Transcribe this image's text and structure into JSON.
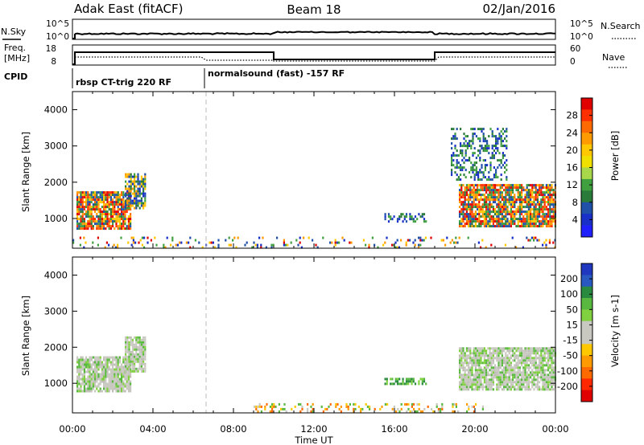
{
  "header": {
    "radar_title": "Adak East (fitACF)",
    "beam_title": "Beam 18",
    "date_title": "02/Jan/2016"
  },
  "top_panels": {
    "nsky_label": "N.Sky",
    "nsky_ticks": [
      "10^5",
      "10^0"
    ],
    "nsearch_label": "N.Search",
    "nsearch_ticks": [
      "10^5",
      "10^0"
    ],
    "freq_label": "Freq.",
    "freq_unit": "[MHz]",
    "freq_ticks": [
      "18",
      "8"
    ],
    "nave_label": "Nave",
    "nave_ticks": [
      "60",
      "0"
    ],
    "cpid_label": "CPID",
    "cpid_segments": [
      "rbsp CT-trig 220 RF",
      "normalsound (fast) -157 RF"
    ]
  },
  "chart_data": [
    {
      "type": "heatmap",
      "name": "power",
      "ylabel": "Slant Range [km]",
      "xlabel": "",
      "y_ticks": [
        "4000",
        "3000",
        "2000",
        "1000"
      ],
      "y_tick_values": [
        4000,
        3000,
        2000,
        1000
      ],
      "ylim": [
        180,
        4500
      ],
      "x_ticks": [
        "00:00",
        "04:00",
        "08:00",
        "12:00",
        "16:00",
        "20:00",
        "00:00"
      ],
      "xlim": [
        0,
        24
      ],
      "colorbar": {
        "label": "Power [dB]",
        "ticks": [
          "28",
          "24",
          "20",
          "16",
          "12",
          "8",
          "4"
        ],
        "colors": [
          "#e00000",
          "#ff3000",
          "#ff6a00",
          "#ff9a00",
          "#ffc800",
          "#f0e000",
          "#a8d84a",
          "#40a040",
          "#2a7a3a",
          "#2050a8",
          "#1830c8",
          "#2020ff"
        ]
      },
      "regions": [
        {
          "t0": 0.2,
          "t1": 2.9,
          "r0": 750,
          "r1": 1750,
          "level": "high"
        },
        {
          "t0": 2.6,
          "t1": 3.6,
          "r0": 1300,
          "r1": 2250,
          "level": "mid"
        },
        {
          "t0": 19.2,
          "t1": 24.0,
          "r0": 780,
          "r1": 1950,
          "level": "high"
        },
        {
          "t0": 18.8,
          "t1": 21.6,
          "r0": 2100,
          "r1": 3500,
          "level": "low"
        },
        {
          "t0": 15.5,
          "t1": 17.6,
          "r0": 950,
          "r1": 1150,
          "level": "low"
        },
        {
          "t0": 0.0,
          "t1": 24.0,
          "r0": 200,
          "r1": 500,
          "level": "sparse"
        }
      ]
    },
    {
      "type": "heatmap",
      "name": "velocity",
      "ylabel": "Slant Range [km]",
      "xlabel": "Time UT",
      "y_ticks": [
        "4000",
        "3000",
        "2000",
        "1000"
      ],
      "y_tick_values": [
        4000,
        3000,
        2000,
        1000
      ],
      "ylim": [
        180,
        4500
      ],
      "x_ticks": [
        "00:00",
        "04:00",
        "08:00",
        "12:00",
        "16:00",
        "20:00",
        "00:00"
      ],
      "xlim": [
        0,
        24
      ],
      "colorbar": {
        "label": "Velocity [m s-1]",
        "ticks": [
          "200",
          "100",
          "50",
          "15",
          "-15",
          "-50",
          "-100",
          "-200"
        ],
        "colors": [
          "#2038c0",
          "#2858c0",
          "#2a8a40",
          "#58b840",
          "#80d040",
          "#c8c8c0",
          "#c8c8c0",
          "#ffc800",
          "#ff9a00",
          "#ff6a00",
          "#ff2800",
          "#e00000"
        ]
      },
      "regions": [
        {
          "t0": 0.2,
          "t1": 2.9,
          "r0": 800,
          "r1": 1750,
          "level": "gray"
        },
        {
          "t0": 2.6,
          "t1": 3.6,
          "r0": 1300,
          "r1": 2300,
          "level": "gray"
        },
        {
          "t0": 19.2,
          "t1": 24.0,
          "r0": 800,
          "r1": 2000,
          "level": "gray"
        },
        {
          "t0": 15.5,
          "t1": 17.6,
          "r0": 950,
          "r1": 1150,
          "level": "green"
        },
        {
          "t0": 9.0,
          "t1": 20.5,
          "r0": 200,
          "r1": 450,
          "level": "orange"
        }
      ]
    }
  ]
}
